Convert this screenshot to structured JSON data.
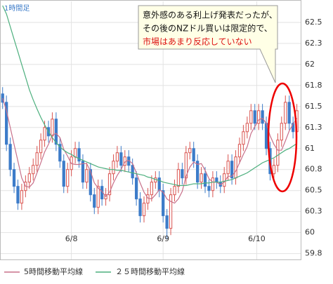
{
  "chart_data": {
    "type": "candlestick",
    "timeframe_label": "1時間足",
    "annotation": {
      "lines": [
        "意外感のある利上げ発表だったが、",
        "その後のNZドル買いは限定的で、",
        "市場はあまり反応していない"
      ]
    },
    "x": [
      0,
      1,
      2,
      3,
      4,
      5,
      6,
      7,
      8,
      9,
      10,
      11,
      12,
      13,
      14,
      15,
      16,
      17,
      18,
      19,
      20,
      21,
      22,
      23,
      24,
      25,
      26,
      27,
      28,
      29,
      30,
      31,
      32,
      33,
      34,
      35,
      36,
      37,
      38,
      39,
      40,
      41,
      42,
      43,
      44,
      45,
      46,
      47,
      48,
      49,
      50,
      51,
      52,
      53,
      54,
      55,
      56,
      57,
      58,
      59,
      60,
      61,
      62,
      63,
      64,
      65,
      66,
      67,
      68,
      69,
      70,
      71,
      72,
      73,
      74,
      75,
      76,
      77
    ],
    "open": [
      61.65,
      61.55,
      61.05,
      60.75,
      60.55,
      60.35,
      60.5,
      60.6,
      60.7,
      60.8,
      60.95,
      61.1,
      61.25,
      61.15,
      61.35,
      61.05,
      60.85,
      60.55,
      60.75,
      60.9,
      61.0,
      60.85,
      60.6,
      60.75,
      60.45,
      60.3,
      60.55,
      60.4,
      60.45,
      60.7,
      60.85,
      60.95,
      60.8,
      60.9,
      60.8,
      60.65,
      60.4,
      60.2,
      60.35,
      60.45,
      60.6,
      60.65,
      60.5,
      60.2,
      60.05,
      60.45,
      60.55,
      60.75,
      60.65,
      60.95,
      61.0,
      60.85,
      60.6,
      60.7,
      60.55,
      60.5,
      60.65,
      60.6,
      60.55,
      60.7,
      60.85,
      60.65,
      60.9,
      61.05,
      61.2,
      61.3,
      61.45,
      61.3,
      61.45,
      61.3,
      61.0,
      60.7,
      60.8,
      61.1,
      61.3,
      61.55,
      61.3,
      61.2
    ],
    "high": [
      61.73,
      61.63,
      61.13,
      60.83,
      60.63,
      60.58,
      60.68,
      60.78,
      60.88,
      61.03,
      61.18,
      61.33,
      61.33,
      61.43,
      61.43,
      61.13,
      60.93,
      60.83,
      60.98,
      61.08,
      61.08,
      60.93,
      60.83,
      60.83,
      60.53,
      60.63,
      60.63,
      60.53,
      60.78,
      60.93,
      61.03,
      61.03,
      60.98,
      60.98,
      60.88,
      60.73,
      60.48,
      60.43,
      60.53,
      60.68,
      60.73,
      60.73,
      60.58,
      60.28,
      60.53,
      60.63,
      60.83,
      60.83,
      61.03,
      61.08,
      61.08,
      60.93,
      60.78,
      60.78,
      60.63,
      60.73,
      60.73,
      60.68,
      60.78,
      60.93,
      60.93,
      60.98,
      61.13,
      61.28,
      61.38,
      61.53,
      61.53,
      61.53,
      61.53,
      61.38,
      61.08,
      60.88,
      61.18,
      61.38,
      61.63,
      61.63,
      61.38,
      61.53
    ],
    "low": [
      61.47,
      60.97,
      60.67,
      60.47,
      60.27,
      60.27,
      60.42,
      60.52,
      60.62,
      60.72,
      60.87,
      61.02,
      61.07,
      61.07,
      60.97,
      60.77,
      60.47,
      60.47,
      60.67,
      60.82,
      60.77,
      60.52,
      60.52,
      60.37,
      60.22,
      60.22,
      60.32,
      60.32,
      60.37,
      60.62,
      60.77,
      60.72,
      60.72,
      60.72,
      60.57,
      60.32,
      60.12,
      60.12,
      60.27,
      60.37,
      60.52,
      60.42,
      60.12,
      59.92,
      59.97,
      60.37,
      60.47,
      60.57,
      60.57,
      60.87,
      60.77,
      60.52,
      60.52,
      60.47,
      60.42,
      60.42,
      60.52,
      60.47,
      60.47,
      60.62,
      60.57,
      60.57,
      60.82,
      60.97,
      61.12,
      61.22,
      61.22,
      61.22,
      61.22,
      60.92,
      60.62,
      60.62,
      60.72,
      61.02,
      61.22,
      61.22,
      61.12,
      61.12
    ],
    "close": [
      61.55,
      61.05,
      60.75,
      60.55,
      60.35,
      60.5,
      60.6,
      60.7,
      60.8,
      60.95,
      61.1,
      61.25,
      61.15,
      61.35,
      61.05,
      60.85,
      60.55,
      60.75,
      60.9,
      61.0,
      60.85,
      60.6,
      60.75,
      60.45,
      60.3,
      60.55,
      60.4,
      60.45,
      60.7,
      60.85,
      60.95,
      60.8,
      60.9,
      60.8,
      60.65,
      60.4,
      60.2,
      60.35,
      60.45,
      60.6,
      60.65,
      60.5,
      60.2,
      60.05,
      60.45,
      60.55,
      60.75,
      60.65,
      60.95,
      61.0,
      60.85,
      60.6,
      60.7,
      60.55,
      60.5,
      60.65,
      60.6,
      60.55,
      60.7,
      60.85,
      60.65,
      60.9,
      61.05,
      61.2,
      61.3,
      61.45,
      61.3,
      61.45,
      61.3,
      61.0,
      60.7,
      60.8,
      61.1,
      61.3,
      61.55,
      61.3,
      61.2,
      61.45
    ],
    "up_color": "#d9534f",
    "down_color": "#3d7cc9",
    "series": [
      {
        "name": "5時間移動平均線",
        "color": "#c8708a",
        "values": [
          61.6,
          61.45,
          61.25,
          61.05,
          60.85,
          60.65,
          60.55,
          60.54,
          60.59,
          60.71,
          60.83,
          60.96,
          61.05,
          61.16,
          61.18,
          61.13,
          60.99,
          60.91,
          60.82,
          60.81,
          60.81,
          60.82,
          60.82,
          60.73,
          60.59,
          60.53,
          60.49,
          60.43,
          60.48,
          60.59,
          60.68,
          60.75,
          60.84,
          60.86,
          60.82,
          60.71,
          60.59,
          60.48,
          60.41,
          60.4,
          60.45,
          60.51,
          60.48,
          60.4,
          60.37,
          60.35,
          60.4,
          60.49,
          60.67,
          60.78,
          60.84,
          60.81,
          60.82,
          60.74,
          60.64,
          60.6,
          60.6,
          60.57,
          60.6,
          60.67,
          60.67,
          60.73,
          60.83,
          60.93,
          61.02,
          61.18,
          61.26,
          61.34,
          61.36,
          61.3,
          61.15,
          61.05,
          60.98,
          60.98,
          61.09,
          61.21,
          61.29,
          61.36
        ]
      },
      {
        "name": "２５時間移動平均線",
        "color": "#4caf7d",
        "values": [
          62.7,
          62.6,
          62.45,
          62.3,
          62.15,
          62.0,
          61.85,
          61.7,
          61.58,
          61.47,
          61.37,
          61.28,
          61.2,
          61.13,
          61.07,
          61.02,
          60.98,
          60.95,
          60.93,
          60.9,
          60.88,
          60.86,
          60.84,
          60.82,
          60.8,
          60.78,
          60.77,
          60.76,
          60.75,
          60.75,
          60.74,
          60.74,
          60.73,
          60.72,
          60.71,
          60.7,
          60.69,
          60.68,
          60.66,
          60.65,
          60.63,
          60.62,
          60.6,
          60.59,
          60.58,
          60.57,
          60.56,
          60.56,
          60.56,
          60.57,
          60.58,
          60.58,
          60.58,
          60.59,
          60.59,
          60.6,
          60.6,
          60.6,
          60.61,
          60.62,
          60.63,
          60.65,
          60.67,
          60.69,
          60.71,
          60.74,
          60.77,
          60.8,
          60.83,
          60.85,
          60.87,
          60.89,
          60.92,
          60.95,
          60.98,
          61.0,
          61.03,
          61.06
        ]
      }
    ],
    "xlim": [
      -0.5,
      78
    ],
    "xticks": [
      {
        "value": 18,
        "label": "6/8"
      },
      {
        "value": 42,
        "label": "6/9"
      },
      {
        "value": 66.5,
        "label": "6/10"
      }
    ],
    "ylim": [
      59.68,
      62.75
    ],
    "yticks": [
      {
        "value": 59.75,
        "label": "59.8"
      },
      60,
      {
        "value": 60.25,
        "label": "60.3"
      },
      60.5,
      {
        "value": 60.75,
        "label": "60.8"
      },
      61,
      {
        "value": 61.25,
        "label": "61.3"
      },
      61.5,
      {
        "value": 61.75,
        "label": "61.8"
      },
      62,
      {
        "value": 62.25,
        "label": "62.3"
      },
      62.5
    ],
    "grid": true
  }
}
